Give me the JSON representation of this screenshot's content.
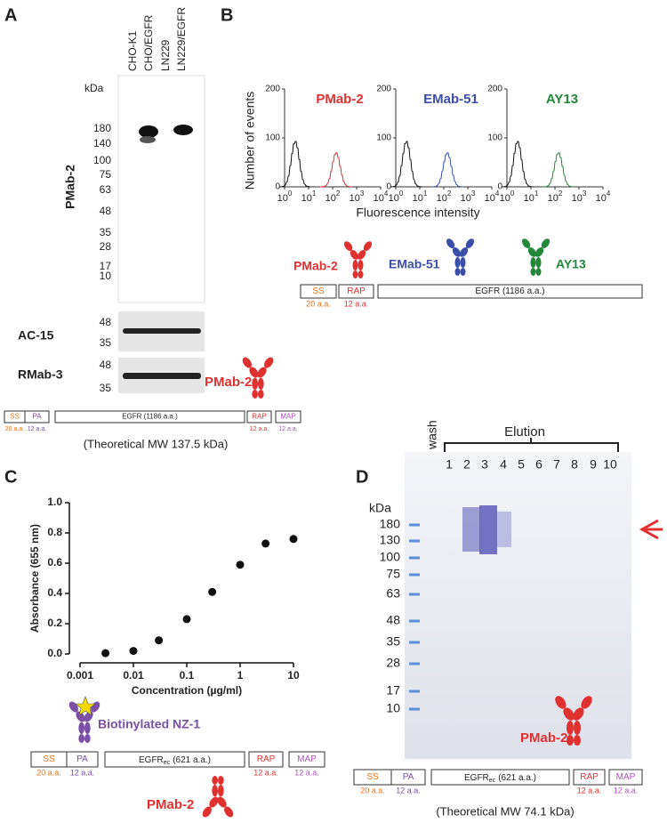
{
  "panel_a": {
    "label": "A",
    "lanes": [
      "CHO-K1",
      "CHO/EGFR",
      "LN229",
      "LN229/EGFR"
    ],
    "kda": "kDa",
    "markers": [
      180,
      140,
      100,
      75,
      63,
      48,
      35,
      28,
      17,
      10
    ],
    "antibody": "PMab-2",
    "blots": [
      {
        "name": "AC-15",
        "markers": [
          48,
          35
        ]
      },
      {
        "name": "RMab-3",
        "markers": [
          48,
          35
        ]
      }
    ],
    "construct": {
      "ss": "SS",
      "ss_len": "20 a.a.",
      "pa": "PA",
      "pa_len": "12 a.a.",
      "egfr": "EGFR (1186 a.a.)",
      "rap": "RAP",
      "rap_len": "12 a.a.",
      "map": "MAP",
      "map_len": "12 a.a.",
      "antibody": "PMab-2",
      "mw": "(Theoretical MW 137.5 kDa)"
    }
  },
  "panel_b": {
    "label": "B",
    "ylabel": "Number of events",
    "xlabel": "Fluorescence intensity",
    "yticks": [
      0,
      100,
      200
    ],
    "xticks": [
      {
        "base": "10",
        "sup": "0"
      },
      {
        "base": "10",
        "sup": "1"
      },
      {
        "base": "10",
        "sup": "2"
      },
      {
        "base": "10",
        "sup": "3"
      },
      {
        "base": "10",
        "sup": "4"
      }
    ],
    "plots": [
      {
        "name": "PMab-2",
        "color": "#e03131"
      },
      {
        "name": "EMab-51",
        "color": "#3b4fa8"
      },
      {
        "name": "AY13",
        "color": "#218838"
      }
    ],
    "construct": {
      "ss": "SS",
      "ss_len": "20 a.a.",
      "rap": "RAP",
      "rap_len": "12 a.a.",
      "egfr": "EGFR (1186 a.a.)"
    }
  },
  "chart_data": {
    "type": "scatter",
    "label": "C",
    "xlabel": "Concentration (µg/ml)",
    "ylabel": "Absorbance (655 nm)",
    "xlog": true,
    "color": "#111",
    "x": [
      0.003,
      0.01,
      0.03,
      0.1,
      0.3,
      1,
      3,
      10
    ],
    "values": [
      0.005,
      0.02,
      0.09,
      0.23,
      0.41,
      0.59,
      0.73,
      0.76
    ],
    "xlim": [
      0.001,
      10
    ],
    "ylim": [
      0,
      1
    ],
    "xticks": [
      0.001,
      0.01,
      0.1,
      1,
      10
    ],
    "yticks": [
      {
        "value": 0,
        "label": "0.0"
      },
      0.2,
      0.4,
      0.6,
      0.8,
      {
        "value": 1,
        "label": "1.0"
      }
    ]
  },
  "panel_c_construct": {
    "binder": "Biotinylated NZ-1",
    "ss": "SS",
    "ss_len": "20 a.a.",
    "pa": "PA",
    "pa_len": "12 a.a.",
    "egfr": "EGFR",
    "egfr_sub": "ec",
    "egfr_len": "(621 a.a.)",
    "rap": "RAP",
    "rap_len": "12 a.a.",
    "map": "MAP",
    "map_len": "12 a.a.",
    "antibody": "PMab-2"
  },
  "panel_d": {
    "label": "D",
    "wash": "wash",
    "elution": "Elution",
    "lanes": [
      "1",
      "2",
      "3",
      "4",
      "5",
      "6",
      "7",
      "8",
      "9",
      "10"
    ],
    "kda": "kDa",
    "markers": [
      180,
      130,
      100,
      75,
      63,
      48,
      35,
      28,
      17,
      10
    ],
    "construct": {
      "antibody": "PMab-2",
      "ss": "SS",
      "ss_len": "20 a.a.",
      "pa": "PA",
      "pa_len": "12 a.a.",
      "egfr": "EGFR",
      "egfr_sub": "ec",
      "egfr_len": "(621 a.a.)",
      "rap": "RAP",
      "rap_len": "12 a.a.",
      "map": "MAP",
      "map_len": "12 a.a.",
      "mw": "(Theoretical MW 74.1 kDa)"
    }
  }
}
